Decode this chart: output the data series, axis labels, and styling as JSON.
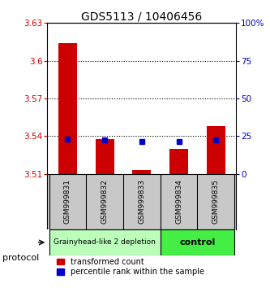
{
  "title": "GDS5113 / 10406456",
  "samples": [
    "GSM999831",
    "GSM999832",
    "GSM999833",
    "GSM999834",
    "GSM999835"
  ],
  "red_values": [
    3.614,
    3.538,
    3.513,
    3.53,
    3.548
  ],
  "blue_values": [
    3.538,
    3.537,
    3.536,
    3.536,
    3.537
  ],
  "ylim_left": [
    3.51,
    3.63
  ],
  "ylim_right": [
    0,
    100
  ],
  "yticks_left": [
    3.51,
    3.54,
    3.57,
    3.6,
    3.63
  ],
  "yticks_right": [
    0,
    25,
    50,
    75,
    100
  ],
  "ytick_labels_left": [
    "3.51",
    "3.54",
    "3.57",
    "3.6",
    "3.63"
  ],
  "ytick_labels_right": [
    "0",
    "25",
    "50",
    "75",
    "100%"
  ],
  "bar_base": 3.51,
  "bar_width": 0.5,
  "red_color": "#cc0000",
  "blue_color": "#0000cc",
  "group1_label": "Grainyhead-like 2 depletion",
  "group2_label": "control",
  "group1_color": "#bbffbb",
  "group2_color": "#44ee44",
  "protocol_label": "protocol",
  "legend1": "transformed count",
  "legend2": "percentile rank within the sample",
  "bg_color": "#ffffff",
  "sample_box_color": "#c8c8c8",
  "title_fontsize": 10,
  "tick_fontsize": 7.5,
  "sample_fontsize": 6.5,
  "legend_fontsize": 7,
  "group_fontsize1": 6.5,
  "group_fontsize2": 8,
  "xlim": [
    -0.55,
    4.55
  ],
  "dotted_lines": [
    3.54,
    3.57,
    3.6
  ]
}
